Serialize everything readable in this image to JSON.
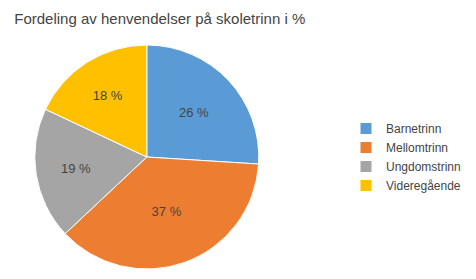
{
  "chart_data": {
    "type": "pie",
    "title": "Fordeling av henvendelser på skoletrinn i %",
    "categories": [
      "Barnetrinn",
      "Mellomtrinn",
      "Ungdomstrinn",
      "Videregående"
    ],
    "values": [
      26,
      37,
      19,
      18
    ],
    "value_labels": [
      "26 %",
      "37 %",
      "19 %",
      "18 %"
    ],
    "colors": [
      "#5B9BD5",
      "#ED7D31",
      "#A5A5A5",
      "#FFC000"
    ],
    "legend": "right",
    "data_labels": true
  }
}
